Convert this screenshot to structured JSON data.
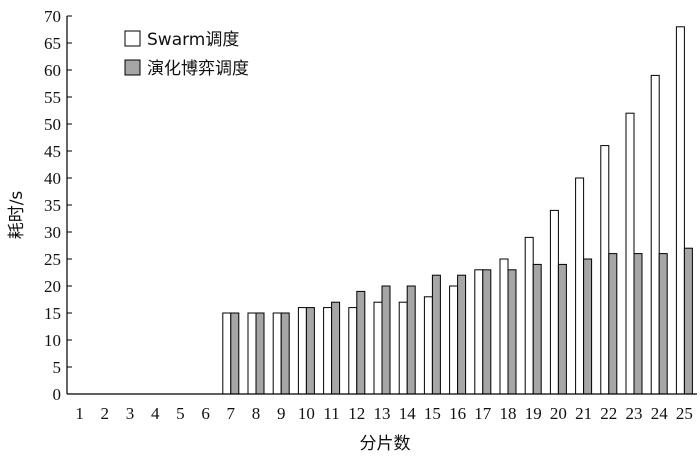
{
  "chart_data": {
    "type": "bar",
    "xlabel": "分片数",
    "ylabel": "耗时/s",
    "ylim": [
      0,
      70
    ],
    "yticks": [
      0,
      5,
      10,
      15,
      20,
      25,
      30,
      35,
      40,
      45,
      50,
      55,
      60,
      65,
      70
    ],
    "categories": [
      "1",
      "2",
      "3",
      "4",
      "5",
      "6",
      "7",
      "8",
      "9",
      "10",
      "11",
      "12",
      "13",
      "14",
      "15",
      "16",
      "17",
      "18",
      "19",
      "20",
      "21",
      "22",
      "23",
      "24",
      "25"
    ],
    "legend_position": "top-left",
    "series": [
      {
        "name": "Swarm调度",
        "fill": "#ffffff",
        "values": [
          0,
          0,
          0,
          0,
          0,
          0,
          15,
          15,
          15,
          16,
          16,
          16,
          17,
          17,
          18,
          20,
          23,
          25,
          29,
          34,
          40,
          46,
          52,
          59,
          68
        ]
      },
      {
        "name": "演化博弈调度",
        "fill": "#a6a6a6",
        "values": [
          0,
          0,
          0,
          0,
          0,
          0,
          15,
          15,
          15,
          16,
          17,
          19,
          20,
          20,
          22,
          22,
          23,
          23,
          24,
          24,
          25,
          26,
          26,
          26,
          27
        ]
      }
    ]
  }
}
